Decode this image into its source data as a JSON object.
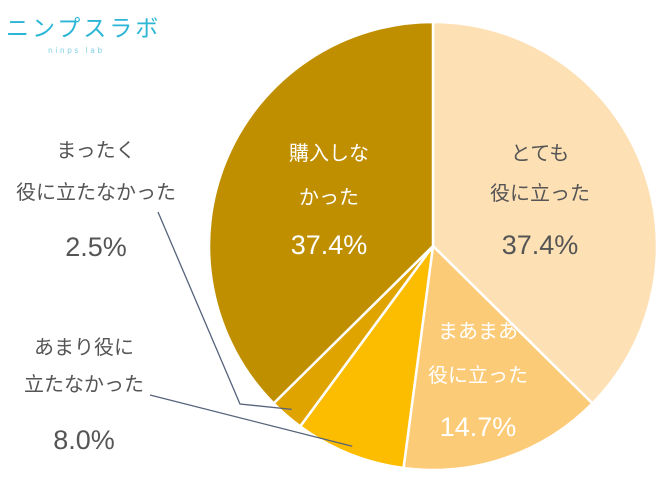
{
  "logo": {
    "main": "ニンプスラボ",
    "sub": "ninps lab"
  },
  "chart_data": {
    "type": "pie",
    "title": "",
    "slices": [
      {
        "label_lines": [
          "とても",
          "役に立った"
        ],
        "value": 37.4,
        "value_label": "37.4%",
        "color": "#fde0b4",
        "label_color": "#555555"
      },
      {
        "label_lines": [
          "まあまあ",
          "役に立った"
        ],
        "value": 14.7,
        "value_label": "14.7%",
        "color": "#fccb78",
        "label_color": "#ffffff"
      },
      {
        "label_lines": [
          "あまり役に",
          "立たなかった"
        ],
        "value": 8.0,
        "value_label": "8.0%",
        "color": "#fcbc00",
        "label_color": "#555555"
      },
      {
        "label_lines": [
          "まったく",
          "役に立たなかった"
        ],
        "value": 2.5,
        "value_label": "2.5%",
        "color": "#e0a400",
        "label_color": "#555555"
      },
      {
        "label_lines": [
          "購入しな",
          "かった"
        ],
        "value": 37.4,
        "value_label": "37.4%",
        "color": "#c08f00",
        "label_color": "#ffffff"
      }
    ]
  }
}
